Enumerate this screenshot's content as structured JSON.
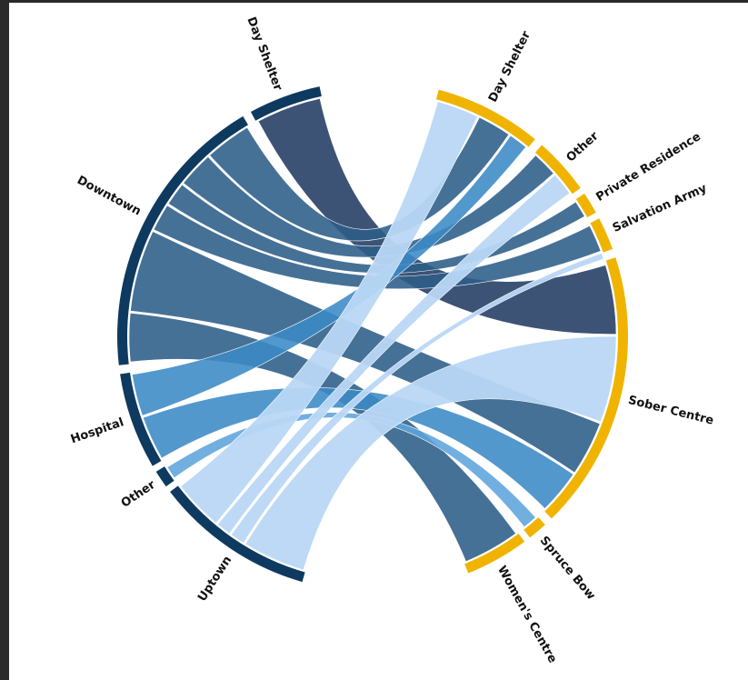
{
  "colors": {
    "origin_arc": "#0f3a5f",
    "destination_arc": "#f0b400",
    "ribbon_day_shelter": "#223b63",
    "ribbon_downtown": "#2c5d87",
    "ribbon_hospital": "#3b8ac6",
    "ribbon_other": "#5fa4dd",
    "ribbon_uptown": "#b9d7f5",
    "background": "#ffffff",
    "frame": "#2a2a2a"
  },
  "origins": [
    {
      "id": "o_day_shelter",
      "label": "Day Shelter"
    },
    {
      "id": "o_downtown",
      "label": "Downtown"
    },
    {
      "id": "o_hospital",
      "label": "Hospital"
    },
    {
      "id": "o_other",
      "label": "Other"
    },
    {
      "id": "o_uptown",
      "label": "Uptown"
    }
  ],
  "destinations": [
    {
      "id": "d_day_shelter",
      "label": "Day Shelter"
    },
    {
      "id": "d_other",
      "label": "Other"
    },
    {
      "id": "d_private_residence",
      "label": "Private Residence"
    },
    {
      "id": "d_salvation_army",
      "label": "Salvation Army"
    },
    {
      "id": "d_sober_centre",
      "label": "Sober Centre"
    },
    {
      "id": "d_spruce_bow",
      "label": "Spruce Bow"
    },
    {
      "id": "d_womens_centre",
      "label": "Women's Centre"
    }
  ]
}
